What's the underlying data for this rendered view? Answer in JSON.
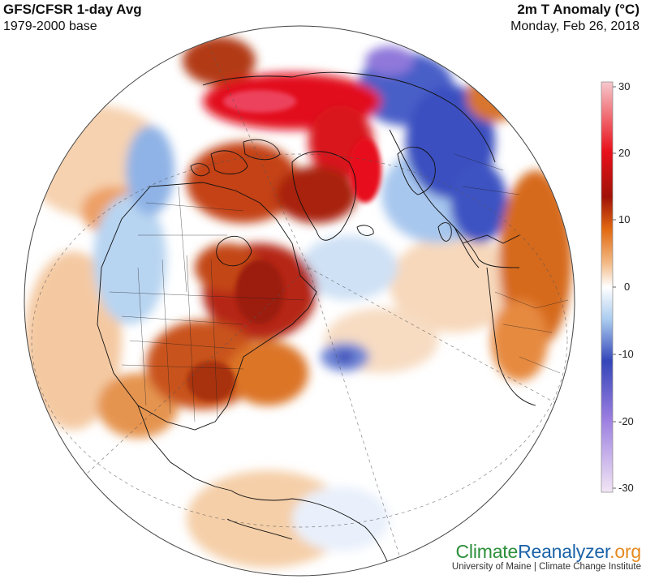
{
  "header": {
    "title": "GFS/CFSR 1-day Avg",
    "subtitle": "1979-2000 base",
    "variable": "2m T Anomaly (°C)",
    "date": "Monday, Feb 26, 2018"
  },
  "colorbar": {
    "ticks": [
      "30",
      "20",
      "10",
      "0",
      "-10",
      "-20",
      "-30"
    ],
    "colors": [
      "#f6c8cd",
      "#e8101a",
      "#a01208",
      "#e26a12",
      "#f2b883",
      "#ffffff",
      "#a9cbef",
      "#3446b9",
      "#9a7de0",
      "#f3e6f5"
    ]
  },
  "map": {
    "projection": "orthographic-north-polar",
    "anomaly_colors": {
      "strong_warm": "#e2111a",
      "warm": "#a8200b",
      "mild_warm": "#d9691b",
      "slight_warm": "#f3c08c",
      "neutral": "#ffffff",
      "slight_cold": "#b9d6f2",
      "cold": "#3a4fc0",
      "extreme_cold": "#8f78da"
    }
  },
  "logo": {
    "part1": "Climate",
    "part2": "Reanalyzer",
    "part3": ".org",
    "sub": "University of Maine | Climate Change Institute"
  }
}
